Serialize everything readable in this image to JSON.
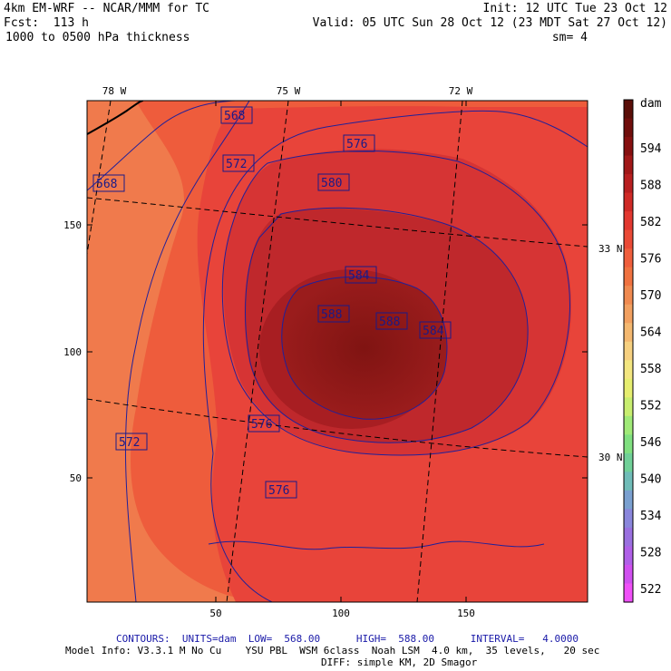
{
  "header": {
    "line1_left": "4km EM-WRF -- NCAR/MMM for TC",
    "line2_left": "Fcst:  113 h",
    "line3_left": "1000 to 0500 hPa thickness",
    "line1_right": "Init: 12 UTC Tue 23 Oct 12",
    "line2_right": "Valid: 05 UTC Sun 28 Oct 12 (23 MDT Sat 27 Oct 12)",
    "line3_right": "sm= 4"
  },
  "map": {
    "lon_labels": [
      "78 W",
      "75 W",
      "72 W"
    ],
    "lat_labels": [
      "33 N",
      "30 N"
    ],
    "x_ticks": [
      "50",
      "100",
      "150"
    ],
    "y_ticks": [
      "150",
      "100",
      "50"
    ],
    "contour_labels": [
      "568",
      "568",
      "572",
      "572",
      "576",
      "576",
      "576",
      "580",
      "584",
      "584",
      "588",
      "588"
    ],
    "colors": {
      "bg_far": "#f07a4c",
      "ring_572": "#ee5a3a",
      "ring_576": "#e8403a",
      "ring_580": "#d63434",
      "ring_584": "#b8262a",
      "ring_588": "#8e161a",
      "contour_line": "#20209a"
    }
  },
  "legend": {
    "units": "dam",
    "labels": [
      "594",
      "588",
      "582",
      "576",
      "570",
      "564",
      "558",
      "552",
      "546",
      "540",
      "534",
      "528",
      "522"
    ],
    "colors": [
      "#5a0e08",
      "#700e0c",
      "#861010",
      "#a11818",
      "#b81f20",
      "#cf2a26",
      "#e23830",
      "#ea4a36",
      "#ef5e3c",
      "#f07240",
      "#f08a50",
      "#f2a060",
      "#f4b870",
      "#f6d080",
      "#f3e680",
      "#e6ee70",
      "#c8ee70",
      "#a0ea78",
      "#80e080",
      "#70d098",
      "#70bcb8",
      "#7aa0d0",
      "#8a86dc",
      "#9a70e0",
      "#b060e8",
      "#d050f0",
      "#f050f8"
    ]
  },
  "footer": {
    "contours": "CONTOURS:  UNITS=dam  LOW=  568.00      HIGH=  588.00      INTERVAL=   4.0000",
    "model_info": "Model Info: V3.3.1 M No Cu    YSU PBL  WSM 6class  Noah LSM  4.0 km,  35 levels,   20 sec",
    "diff": "DIFF: simple KM, 2D Smagor"
  }
}
